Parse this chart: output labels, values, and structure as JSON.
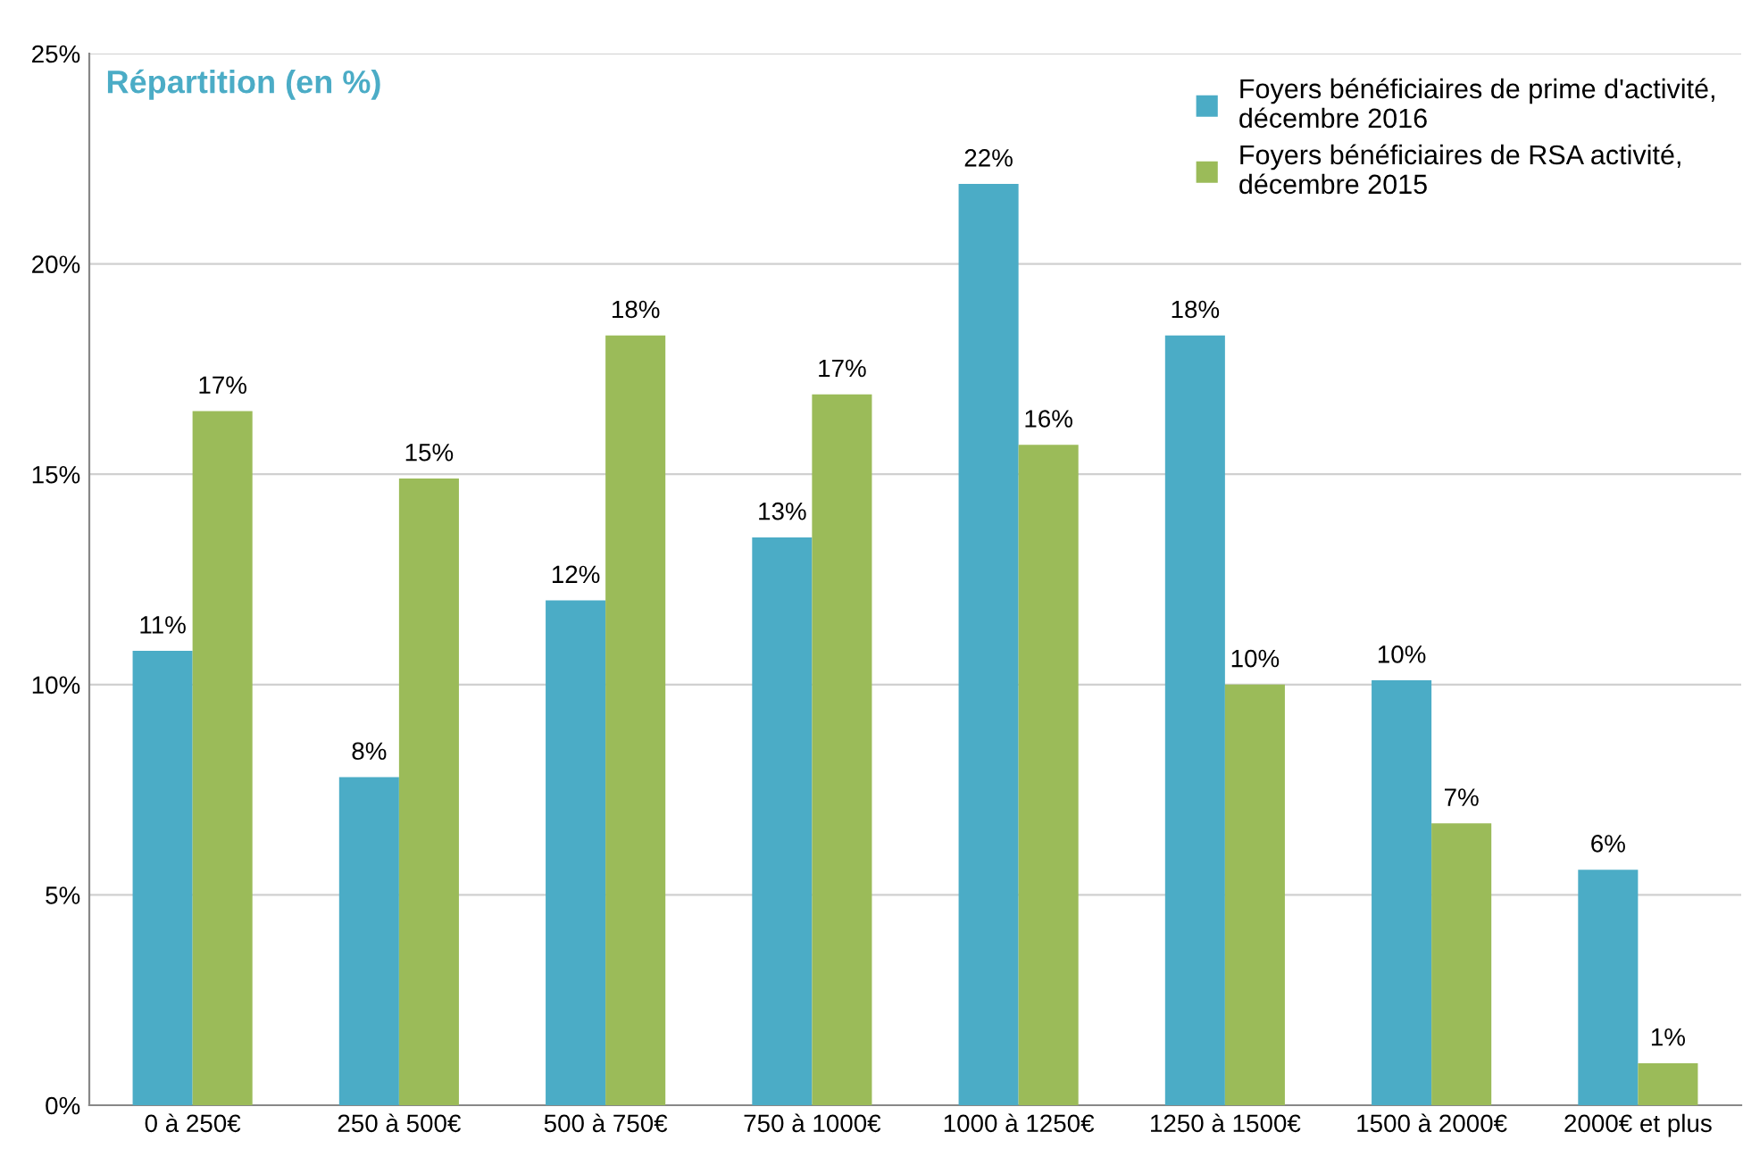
{
  "chart_data": {
    "type": "bar",
    "title": "Répartition (en %)",
    "categories": [
      "0 à 250€",
      "250 à 500€",
      "500 à 750€",
      "750 à 1000€",
      "1000 à 1250€",
      "1250 à 1500€",
      "1500 à 2000€",
      "2000€ et plus"
    ],
    "series": [
      {
        "name": "Foyers bénéficiaires de prime d'activité,\ndécembre 2016",
        "color": "#4bacc6",
        "values": [
          10.8,
          7.8,
          12.0,
          13.5,
          21.9,
          18.3,
          10.1,
          5.6
        ],
        "value_labels": [
          "11%",
          "8%",
          "12%",
          "13%",
          "22%",
          "18%",
          "10%",
          "6%"
        ]
      },
      {
        "name": "Foyers bénéficiaires de RSA activité,\ndécembre 2015",
        "color": "#9bbb59",
        "values": [
          16.5,
          14.9,
          18.3,
          16.9,
          15.7,
          10.0,
          6.7,
          1.0
        ],
        "value_labels": [
          "17%",
          "15%",
          "18%",
          "17%",
          "16%",
          "10%",
          "7%",
          "1%"
        ]
      }
    ],
    "ylim": [
      0,
      25
    ],
    "yticks": [
      {
        "value": 0,
        "label": "0%"
      },
      {
        "value": 5,
        "label": "5%"
      },
      {
        "value": 10,
        "label": "10%"
      },
      {
        "value": 15,
        "label": "15%"
      },
      {
        "value": 20,
        "label": "20%"
      },
      {
        "value": 25,
        "label": "25%"
      }
    ],
    "grid": "y",
    "legend": "top right"
  }
}
